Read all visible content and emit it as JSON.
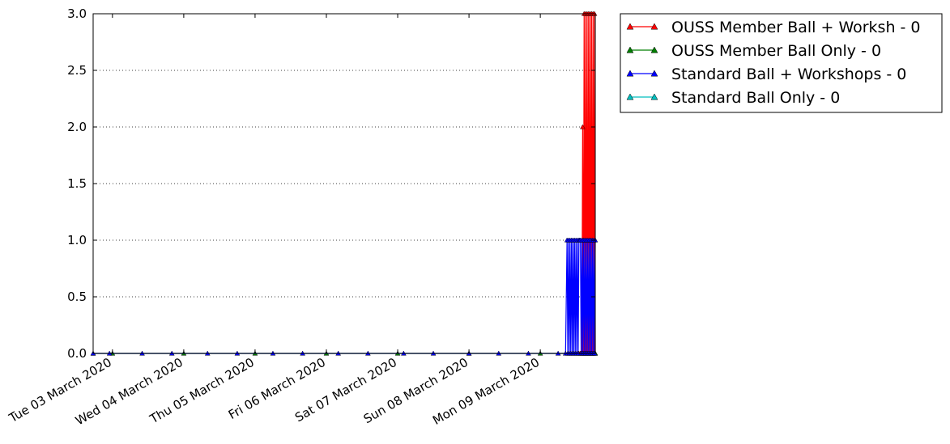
{
  "chart_data": {
    "type": "line",
    "title": "",
    "xlabel": "",
    "ylabel": "",
    "ylim": [
      0,
      3.0
    ],
    "xlim": [
      "2020-03-02T17:30",
      "2020-03-09T18:30"
    ],
    "y_ticks": [
      "0.0",
      "0.5",
      "1.0",
      "1.5",
      "2.0",
      "2.5",
      "3.0"
    ],
    "x_ticks": [
      {
        "t": "2020-03-03T00:00",
        "label": "Tue 03 March 2020"
      },
      {
        "t": "2020-03-04T00:00",
        "label": "Wed 04 March 2020"
      },
      {
        "t": "2020-03-05T00:00",
        "label": "Thu 05 March 2020"
      },
      {
        "t": "2020-03-06T00:00",
        "label": "Fri 06 March 2020"
      },
      {
        "t": "2020-03-07T00:00",
        "label": "Sat 07 March 2020"
      },
      {
        "t": "2020-03-08T00:00",
        "label": "Sun 08 March 2020"
      },
      {
        "t": "2020-03-09T00:00",
        "label": "Mon 09 March 2020"
      }
    ],
    "grid": "y-dotted",
    "legend_position": "outside-right-top",
    "series": [
      {
        "name": "OUSS Member Ball + Worksh - 0",
        "color": "#ff0000",
        "marker": "triangle",
        "points": [
          [
            "2020-03-09T13:00",
            0
          ],
          [
            "2020-03-09T13:30",
            0
          ],
          [
            "2020-03-09T14:00",
            0
          ],
          [
            "2020-03-09T14:15",
            2
          ],
          [
            "2020-03-09T14:30",
            0
          ],
          [
            "2020-03-09T14:45",
            3
          ],
          [
            "2020-03-09T15:00",
            0
          ],
          [
            "2020-03-09T15:15",
            3
          ],
          [
            "2020-03-09T15:30",
            0
          ],
          [
            "2020-03-09T15:45",
            3
          ],
          [
            "2020-03-09T16:00",
            0
          ],
          [
            "2020-03-09T16:15",
            3
          ],
          [
            "2020-03-09T16:30",
            0
          ],
          [
            "2020-03-09T16:45",
            3
          ],
          [
            "2020-03-09T17:00",
            0
          ],
          [
            "2020-03-09T17:15",
            3
          ],
          [
            "2020-03-09T17:30",
            0
          ],
          [
            "2020-03-09T17:45",
            3
          ],
          [
            "2020-03-09T18:00",
            0
          ],
          [
            "2020-03-09T18:15",
            3
          ],
          [
            "2020-03-09T18:30",
            0
          ]
        ]
      },
      {
        "name": "OUSS Member Ball Only - 0",
        "color": "#007f00",
        "marker": "triangle",
        "points": [
          [
            "2020-03-02T17:30",
            0
          ],
          [
            "2020-03-03T00:00",
            0
          ],
          [
            "2020-03-04T00:00",
            0
          ],
          [
            "2020-03-05T00:00",
            0
          ],
          [
            "2020-03-06T00:00",
            0
          ],
          [
            "2020-03-07T00:00",
            0
          ],
          [
            "2020-03-08T00:00",
            0
          ],
          [
            "2020-03-09T00:00",
            0
          ],
          [
            "2020-03-09T18:30",
            0
          ]
        ]
      },
      {
        "name": "Standard Ball + Workshops - 0",
        "color": "#0000ff",
        "marker": "triangle",
        "points": [
          [
            "2020-03-02T17:30",
            0
          ],
          [
            "2020-03-02T23:00",
            0
          ],
          [
            "2020-03-03T10:00",
            0
          ],
          [
            "2020-03-03T20:00",
            0
          ],
          [
            "2020-03-04T08:00",
            0
          ],
          [
            "2020-03-04T18:00",
            0
          ],
          [
            "2020-03-05T06:00",
            0
          ],
          [
            "2020-03-05T16:00",
            0
          ],
          [
            "2020-03-06T04:00",
            0
          ],
          [
            "2020-03-06T14:00",
            0
          ],
          [
            "2020-03-07T02:00",
            0
          ],
          [
            "2020-03-07T12:00",
            0
          ],
          [
            "2020-03-08T00:00",
            0
          ],
          [
            "2020-03-08T10:00",
            0
          ],
          [
            "2020-03-08T20:00",
            0
          ],
          [
            "2020-03-09T06:00",
            0
          ],
          [
            "2020-03-09T08:30",
            0
          ],
          [
            "2020-03-09T09:00",
            1
          ],
          [
            "2020-03-09T09:15",
            0
          ],
          [
            "2020-03-09T09:30",
            1
          ],
          [
            "2020-03-09T09:45",
            0
          ],
          [
            "2020-03-09T10:00",
            1
          ],
          [
            "2020-03-09T10:15",
            0
          ],
          [
            "2020-03-09T10:30",
            1
          ],
          [
            "2020-03-09T10:45",
            0
          ],
          [
            "2020-03-09T11:00",
            1
          ],
          [
            "2020-03-09T11:15",
            0
          ],
          [
            "2020-03-09T11:30",
            1
          ],
          [
            "2020-03-09T11:45",
            0
          ],
          [
            "2020-03-09T12:00",
            1
          ],
          [
            "2020-03-09T12:15",
            0
          ],
          [
            "2020-03-09T12:30",
            1
          ],
          [
            "2020-03-09T12:45",
            0
          ],
          [
            "2020-03-09T13:00",
            1
          ],
          [
            "2020-03-09T13:15",
            1
          ],
          [
            "2020-03-09T13:30",
            1
          ],
          [
            "2020-03-09T13:45",
            0
          ],
          [
            "2020-03-09T14:00",
            1
          ],
          [
            "2020-03-09T14:15",
            0
          ],
          [
            "2020-03-09T14:30",
            1
          ],
          [
            "2020-03-09T14:45",
            0
          ],
          [
            "2020-03-09T15:00",
            1
          ],
          [
            "2020-03-09T15:15",
            0
          ],
          [
            "2020-03-09T15:30",
            1
          ],
          [
            "2020-03-09T15:45",
            0
          ],
          [
            "2020-03-09T16:00",
            1
          ],
          [
            "2020-03-09T16:15",
            0
          ],
          [
            "2020-03-09T16:30",
            1
          ],
          [
            "2020-03-09T16:45",
            0
          ],
          [
            "2020-03-09T17:00",
            1
          ],
          [
            "2020-03-09T17:15",
            0
          ],
          [
            "2020-03-09T17:30",
            1
          ],
          [
            "2020-03-09T17:45",
            0
          ],
          [
            "2020-03-09T18:00",
            1
          ],
          [
            "2020-03-09T18:15",
            0
          ],
          [
            "2020-03-09T18:30",
            1
          ]
        ]
      },
      {
        "name": "Standard Ball Only - 0",
        "color": "#00bfbf",
        "marker": "triangle",
        "points": []
      }
    ]
  }
}
